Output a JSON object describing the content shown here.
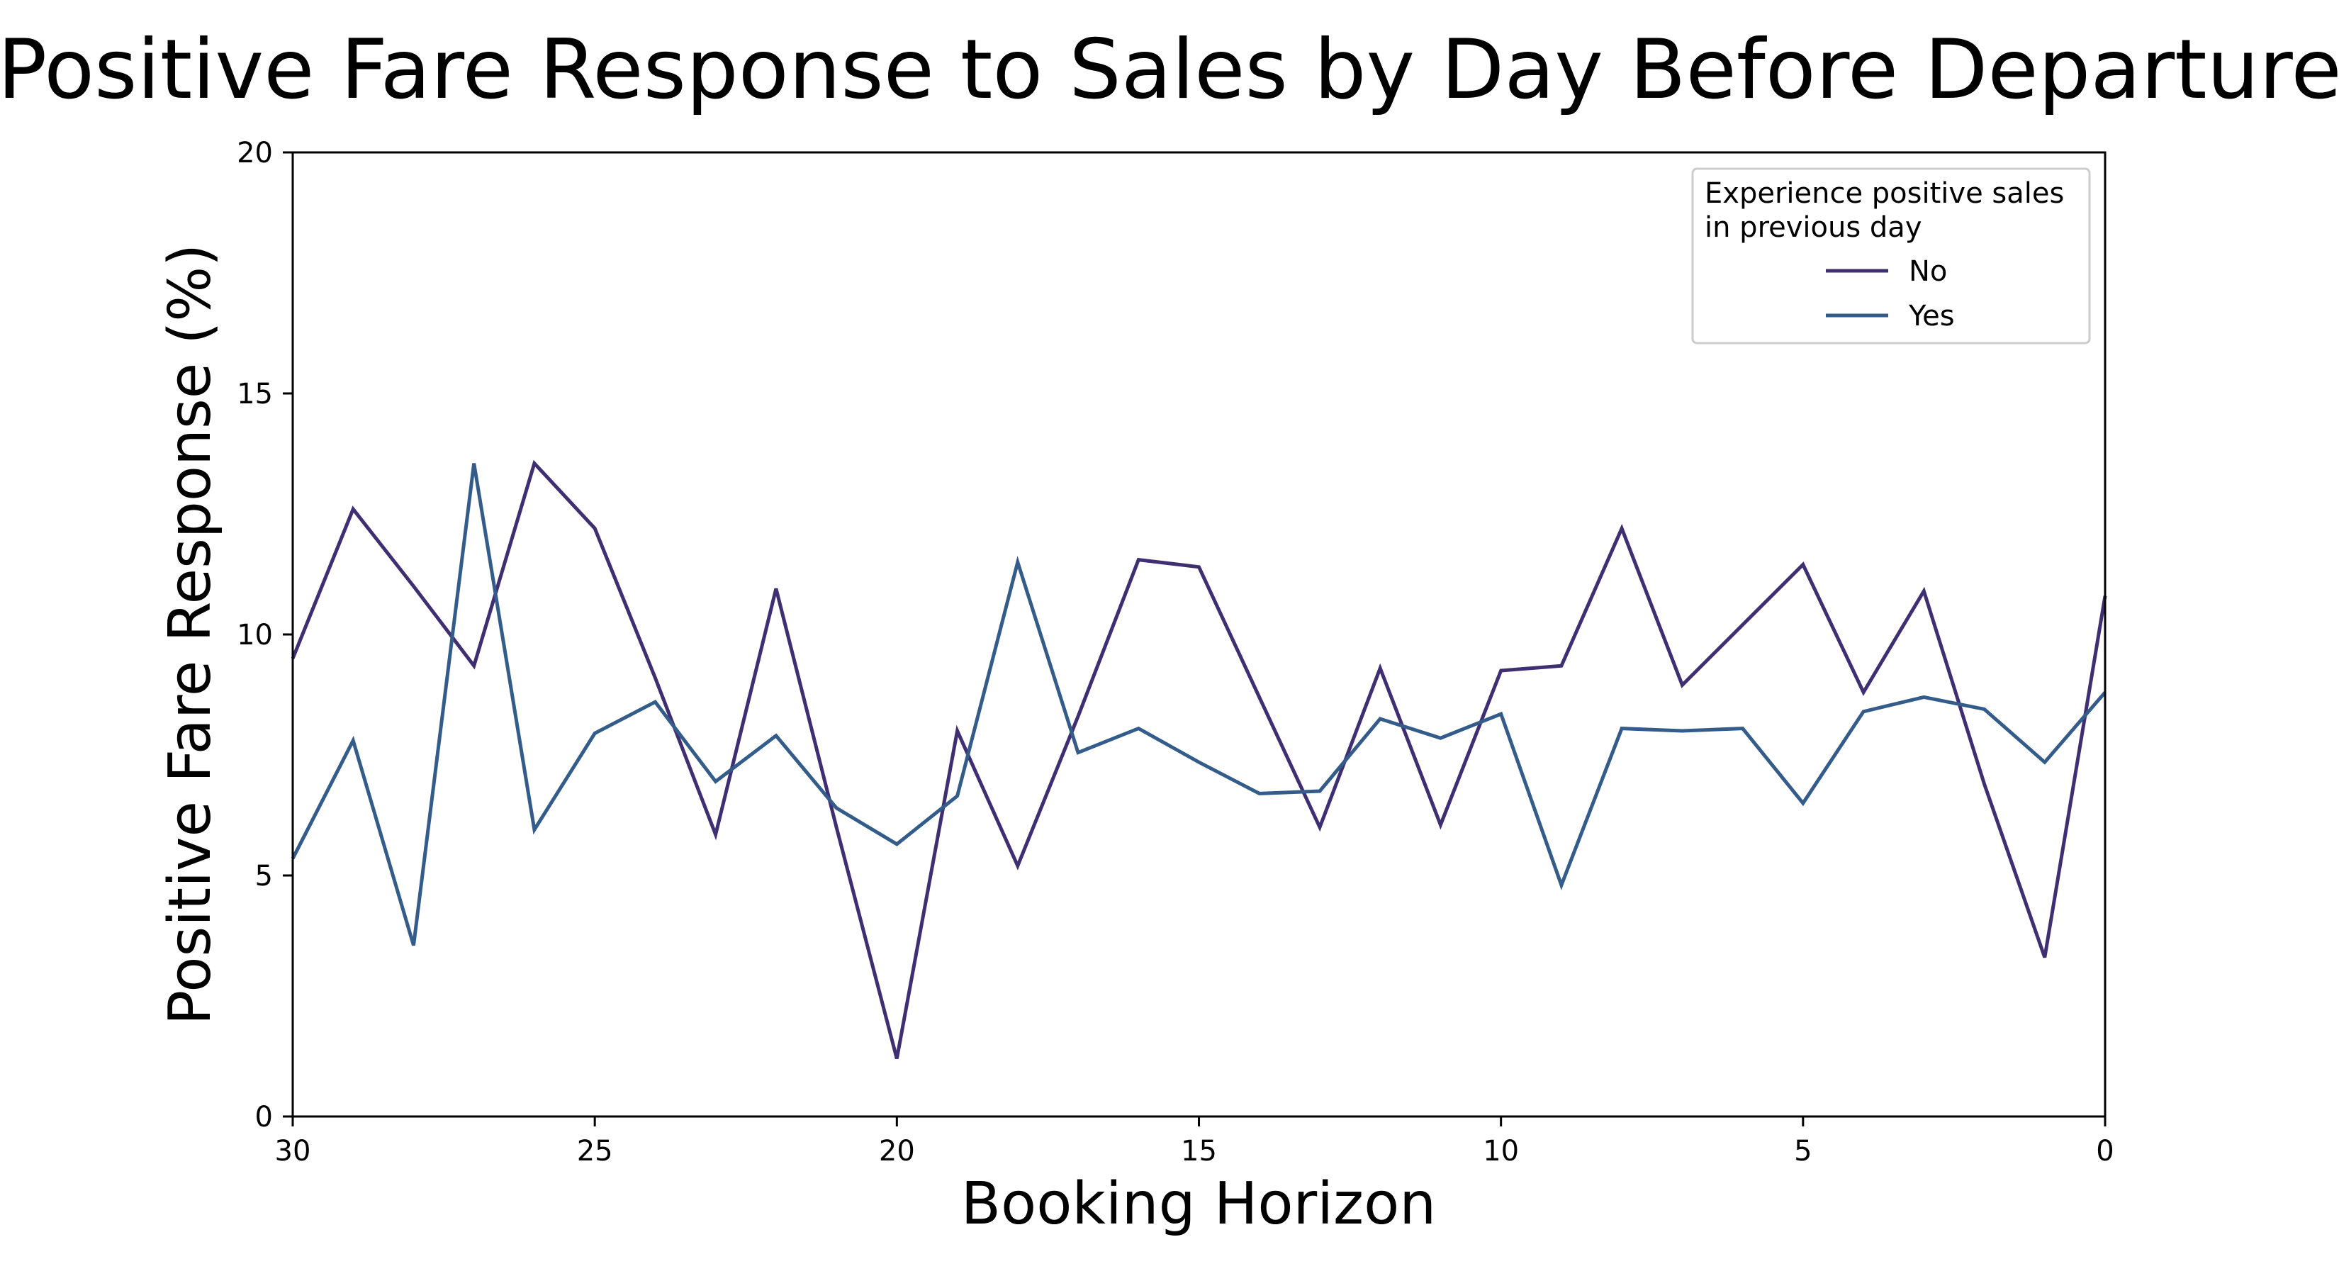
{
  "chart_data": {
    "type": "line",
    "title": "Positive Fare Response to Sales by Day Before Departure",
    "xlabel": "Booking Horizon",
    "ylabel": "Positive Fare Response (%)",
    "xlim": [
      30,
      0
    ],
    "ylim": [
      0,
      20
    ],
    "x_ticks": [
      30,
      25,
      20,
      15,
      10,
      5,
      0
    ],
    "y_ticks": [
      0,
      5,
      10,
      15,
      20
    ],
    "grid": false,
    "legend": {
      "title_lines": [
        "Experience positive sales",
        "in previous day"
      ],
      "placement": "top-right"
    },
    "x": [
      30,
      29,
      28,
      27,
      26,
      25,
      24,
      23,
      22,
      21,
      20,
      19,
      18,
      17,
      16,
      15,
      14,
      13,
      12,
      11,
      10,
      9,
      8,
      7,
      6,
      5,
      4,
      3,
      2,
      1,
      0
    ],
    "series": [
      {
        "name": "No",
        "color": "#3f2f72",
        "values": [
          9.5,
          12.6,
          11.0,
          9.35,
          13.55,
          12.2,
          9.1,
          5.85,
          10.95,
          6.0,
          1.2,
          8.0,
          5.2,
          8.3,
          11.55,
          11.4,
          8.7,
          6.0,
          9.3,
          6.05,
          9.25,
          9.35,
          12.2,
          8.95,
          10.2,
          11.45,
          8.8,
          10.9,
          6.9,
          3.3,
          10.8
        ]
      },
      {
        "name": "Yes",
        "color": "#335c8a",
        "values": [
          5.35,
          7.8,
          3.55,
          13.55,
          5.95,
          7.95,
          8.6,
          6.95,
          7.9,
          6.4,
          5.65,
          6.65,
          11.5,
          7.55,
          8.05,
          7.35,
          6.7,
          6.75,
          8.25,
          7.85,
          8.35,
          4.8,
          8.05,
          8.0,
          8.05,
          6.5,
          8.4,
          8.7,
          8.45,
          7.35,
          8.8
        ]
      }
    ]
  }
}
